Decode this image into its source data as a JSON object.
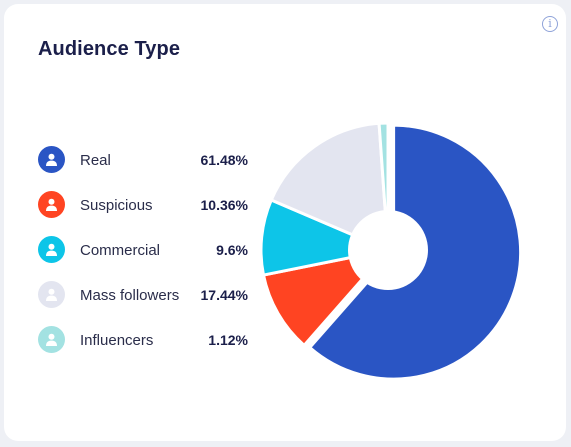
{
  "card": {
    "title": "Audience Type",
    "info_icon": "info-icon"
  },
  "legend": {
    "items": [
      {
        "label": "Real",
        "value_text": "61.48%",
        "color": "#2a55c4",
        "icon": "person-icon"
      },
      {
        "label": "Suspicious",
        "value_text": "10.36%",
        "color": "#ff4422",
        "icon": "person-icon"
      },
      {
        "label": "Commercial",
        "value_text": "9.6%",
        "color": "#0dc5e8",
        "icon": "person-icon"
      },
      {
        "label": "Mass followers",
        "value_text": "17.44%",
        "color": "#e3e5f0",
        "icon": "person-icon"
      },
      {
        "label": "Influencers",
        "value_text": "1.12%",
        "color": "#a3e2e2",
        "icon": "person-icon"
      }
    ]
  },
  "chart_data": {
    "type": "pie",
    "donut": true,
    "title": "Audience Type",
    "categories": [
      "Real",
      "Suspicious",
      "Commercial",
      "Mass followers",
      "Influencers"
    ],
    "values": [
      61.48,
      10.36,
      9.6,
      17.44,
      1.12
    ],
    "colors": [
      "#2a55c4",
      "#ff4422",
      "#0dc5e8",
      "#e3e5f0",
      "#a3e2e2"
    ],
    "start": "top",
    "direction": "clockwise",
    "highlighted_slice": "Real",
    "legend_position": "left"
  }
}
